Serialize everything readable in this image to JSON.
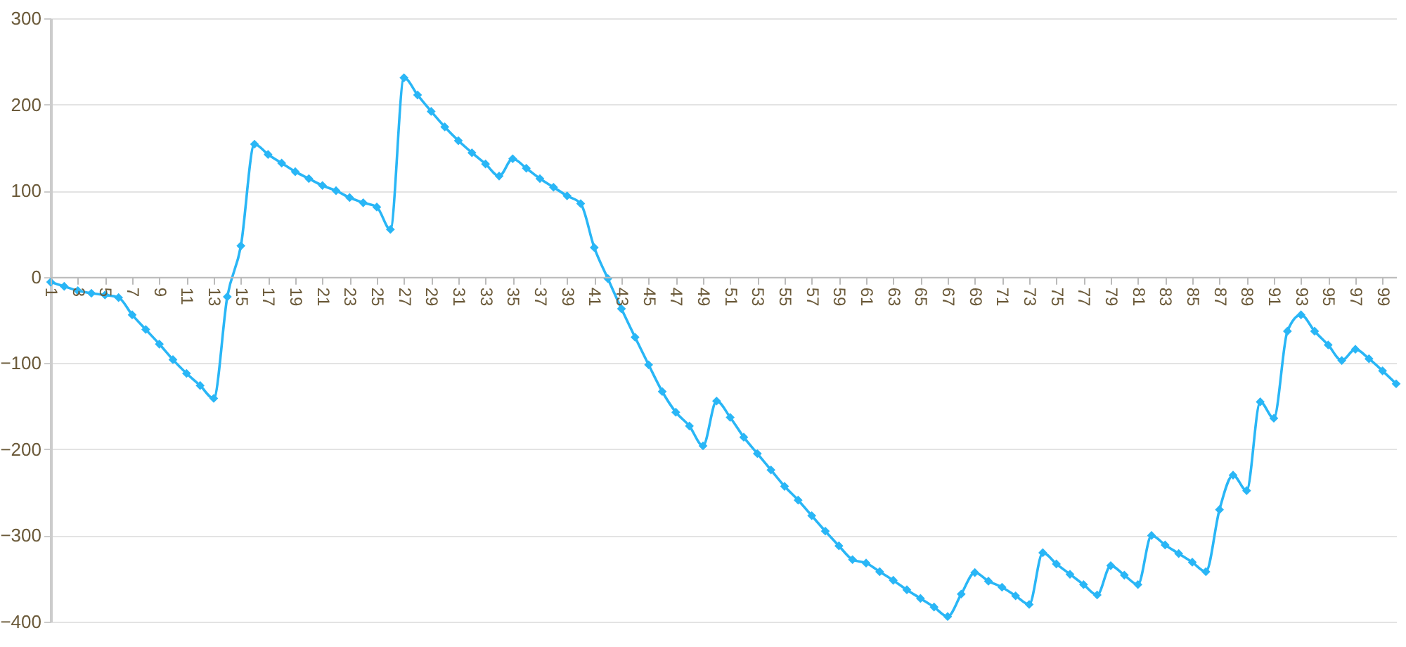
{
  "chart_data": {
    "type": "line",
    "categories": [
      "1",
      null,
      "3",
      null,
      "5",
      null,
      "7",
      null,
      "9",
      null,
      "11",
      null,
      "13",
      null,
      "15",
      null,
      "17",
      null,
      "19",
      null,
      "21",
      null,
      "23",
      null,
      "25",
      null,
      "27",
      null,
      "29",
      null,
      "31",
      null,
      "33",
      null,
      "35",
      null,
      "37",
      null,
      "39",
      null,
      "41",
      null,
      "43",
      null,
      "45",
      null,
      "47",
      null,
      "49",
      null,
      "51",
      null,
      "53",
      null,
      "55",
      null,
      "57",
      null,
      "59",
      null,
      "61",
      null,
      "63",
      null,
      "65",
      null,
      "67",
      null,
      "69",
      null,
      "71",
      null,
      "73",
      null,
      "75",
      null,
      "77",
      null,
      "79",
      null,
      "81",
      null,
      "83",
      null,
      "85",
      null,
      "87",
      null,
      "89",
      null,
      "91",
      null,
      "93",
      null,
      "95",
      null,
      "97",
      null,
      "99",
      null
    ],
    "series": [
      {
        "color": "#29b6f6",
        "values": [
          -6,
          -11,
          -16,
          -19,
          -21,
          -24,
          -44,
          -61,
          -78,
          -96,
          -112,
          -126,
          -141,
          -23,
          36,
          154,
          142,
          132,
          122,
          114,
          106,
          100,
          92,
          86,
          81,
          55,
          231,
          211,
          192,
          174,
          158,
          144,
          131,
          117,
          137,
          126,
          114,
          104,
          94,
          85,
          34,
          -2,
          -37,
          -70,
          -102,
          -133,
          -157,
          -173,
          -196,
          -144,
          -163,
          -186,
          -205,
          -224,
          -243,
          -259,
          -277,
          -295,
          -312,
          -328,
          -332,
          -342,
          -352,
          -363,
          -373,
          -383,
          -394,
          -368,
          -343,
          -353,
          -360,
          -370,
          -380,
          -320,
          -333,
          -345,
          -357,
          -369,
          -335,
          -346,
          -357,
          -300,
          -311,
          -321,
          -331,
          -342,
          -270,
          -230,
          -248,
          -145,
          -164,
          -63,
          -44,
          -63,
          -79,
          -97,
          -84,
          -95,
          -109,
          -124
        ]
      }
    ],
    "ylim": [
      -400,
      300
    ],
    "yticks": [
      -400,
      -300,
      -200,
      -100,
      0,
      100,
      200,
      300
    ],
    "grid": "y",
    "marker": "diamond",
    "line_style": "solid"
  }
}
